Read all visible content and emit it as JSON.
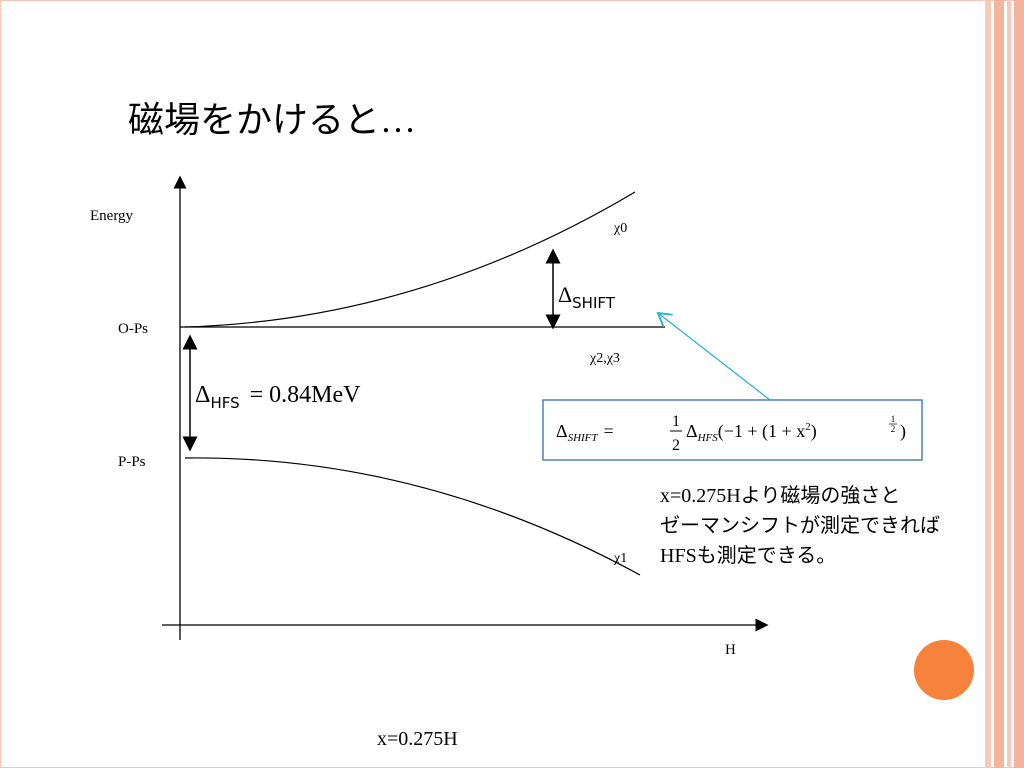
{
  "title": "磁場をかけると…",
  "diagram": {
    "y_axis_label": "Energy",
    "x_axis_label": "H",
    "levels": {
      "upper": "O-Ps",
      "lower": "P-Ps"
    },
    "curves": {
      "rising": "χ0",
      "flat": "χ2,χ3",
      "falling": "χ1"
    },
    "shift_label": {
      "symbol": "Δ",
      "subscript": "SHIFT"
    },
    "hfs_label": {
      "symbol": "Δ",
      "subscript": "HFS",
      "rest": "= 0.84MeV"
    },
    "formula": {
      "lhs": "Δ",
      "lhs_sub": "SHIFT",
      "eq": "=",
      "frac_num": "1",
      "frac_den": "2",
      "delta": "Δ",
      "delta_sub": "HFS",
      "open": "(−1 + (1 + x",
      "x_exp": "2",
      "close1": ")",
      "exp_num": "1",
      "exp_den": "2",
      "close2": ")"
    },
    "note": [
      "x=0.275Hより磁場の強さと",
      "ゼーマンシフトが測定できれば",
      "HFSも測定できる。"
    ],
    "bottom_label": "x=0.275H"
  }
}
